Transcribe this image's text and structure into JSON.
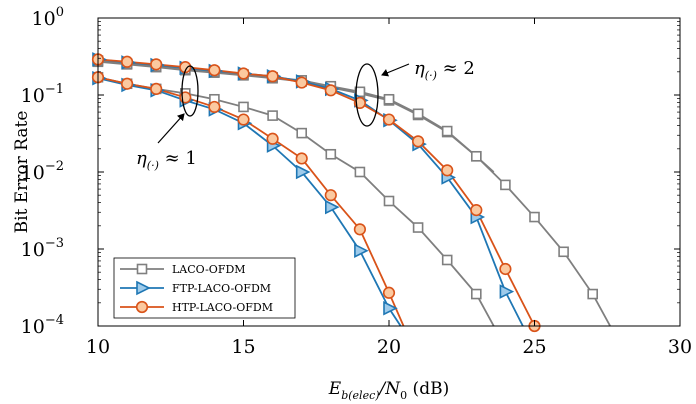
{
  "chart_data": {
    "type": "line",
    "title": "",
    "xlabel": "E_b(elec)/N_0 (dB)",
    "xlabel_parts": {
      "main": "E",
      "sub": "b(elec)",
      "rest": "/N",
      "sub2": "0",
      "unit": " (dB)"
    },
    "ylabel": "Bit Error Rate",
    "xlim": [
      10,
      30
    ],
    "ylim": [
      0.0001,
      1
    ],
    "yscale": "log",
    "xticks": [
      10,
      15,
      20,
      25,
      30
    ],
    "yticks": [
      {
        "value": 1,
        "base": "10",
        "exp": "0"
      },
      {
        "value": 0.1,
        "base": "10",
        "exp": "−1"
      },
      {
        "value": 0.01,
        "base": "10",
        "exp": "−2"
      },
      {
        "value": 0.001,
        "base": "10",
        "exp": "−3"
      },
      {
        "value": 0.0001,
        "base": "10",
        "exp": "−4"
      }
    ],
    "grid": false,
    "legend": {
      "position": "bottom-left"
    },
    "series": [
      {
        "name": "LACO-OFDM",
        "color": "#7f7f7f",
        "marker": "square",
        "curves": [
          {
            "x": [
              10,
              11,
              12,
              13,
              14,
              15,
              16,
              17,
              18,
              19,
              20,
              21,
              22,
              23,
              23.6
            ],
            "y": [
              0.27,
              0.25,
              0.23,
              0.21,
              0.195,
              0.18,
              0.165,
              0.15,
              0.125,
              0.105,
              0.085,
              0.055,
              0.033,
              0.016,
              0.01
            ]
          },
          {
            "x": [
              10,
              11,
              12,
              13,
              14,
              15,
              16,
              17,
              18,
              19,
              20,
              21,
              22,
              23,
              24,
              25,
              26,
              27,
              27.6
            ],
            "y": [
              0.28,
              0.255,
              0.235,
              0.215,
              0.2,
              0.185,
              0.17,
              0.155,
              0.13,
              0.11,
              0.088,
              0.057,
              0.034,
              0.016,
              0.0068,
              0.0026,
              0.00092,
              0.00026,
              0.0001
            ]
          },
          {
            "x": [
              10,
              11,
              12,
              13,
              14,
              15,
              16,
              17,
              18,
              19,
              20,
              21,
              22,
              23,
              23.6
            ],
            "y": [
              0.17,
              0.14,
              0.12,
              0.105,
              0.088,
              0.07,
              0.054,
              0.032,
              0.017,
              0.01,
              0.0042,
              0.0019,
              0.00072,
              0.00026,
              0.0001
            ]
          }
        ]
      },
      {
        "name": "FTP-LACO-OFDM",
        "color": "#1f77b4",
        "marker": "triangle-right",
        "curves": [
          {
            "x": [
              10,
              11,
              12,
              13,
              14,
              15,
              16,
              17,
              18,
              19,
              20,
              20.4
            ],
            "y": [
              0.165,
              0.135,
              0.115,
              0.085,
              0.065,
              0.043,
              0.022,
              0.01,
              0.0035,
              0.00095,
              0.00017,
              0.0001
            ]
          },
          {
            "x": [
              10,
              11,
              12,
              13,
              14,
              15,
              16,
              17,
              18,
              19,
              20,
              21,
              22,
              23,
              24,
              24.6
            ],
            "y": [
              0.29,
              0.265,
              0.245,
              0.225,
              0.205,
              0.19,
              0.175,
              0.15,
              0.12,
              0.085,
              0.047,
              0.023,
              0.0085,
              0.0026,
              0.00028,
              0.0001
            ]
          }
        ]
      },
      {
        "name": "HTP-LACO-OFDM",
        "color": "#d95319",
        "marker": "circle",
        "curves": [
          {
            "x": [
              10,
              11,
              12,
              13,
              14,
              15,
              16,
              17,
              18,
              19,
              20,
              20.5
            ],
            "y": [
              0.17,
              0.14,
              0.12,
              0.093,
              0.07,
              0.048,
              0.027,
              0.015,
              0.005,
              0.0018,
              0.00027,
              0.0001
            ]
          },
          {
            "x": [
              10,
              11,
              12,
              13,
              14,
              15,
              16,
              17,
              18,
              19,
              20,
              21,
              22,
              23,
              24,
              25
            ],
            "y": [
              0.29,
              0.27,
              0.25,
              0.23,
              0.21,
              0.19,
              0.175,
              0.145,
              0.115,
              0.079,
              0.048,
              0.025,
              0.0105,
              0.0032,
              0.00055,
              0.0001
            ]
          }
        ]
      }
    ],
    "annotations": [
      {
        "symbol": "η",
        "sub": "(·)",
        "op": " ≈ 1"
      },
      {
        "symbol": "η",
        "sub": "(·)",
        "op": " ≈ 2"
      }
    ]
  }
}
